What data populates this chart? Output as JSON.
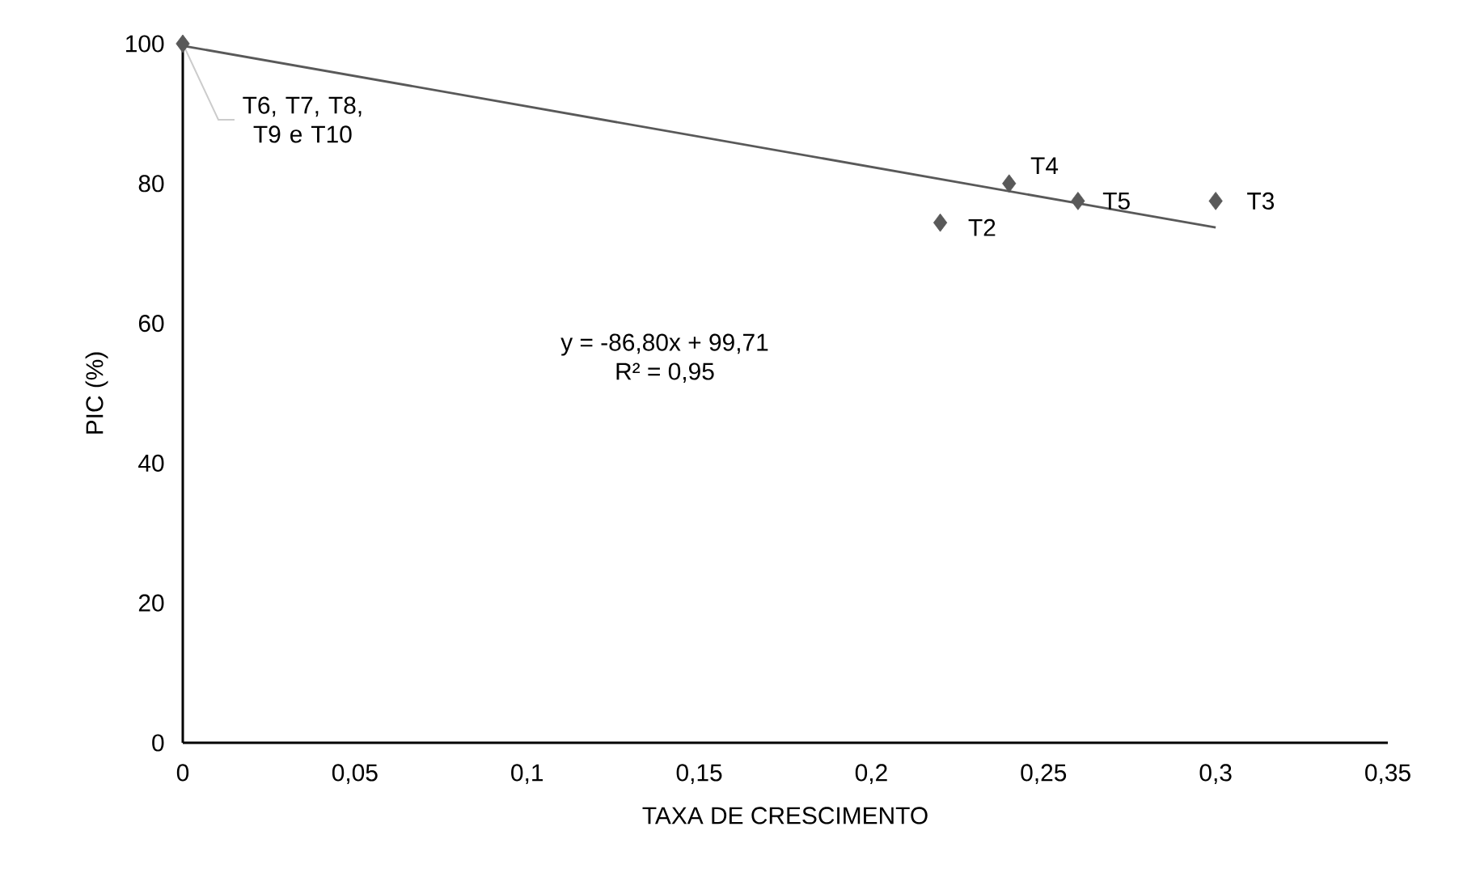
{
  "chart_data": {
    "type": "scatter",
    "xlabel": "TAXA DE CRESCIMENTO",
    "ylabel": "PIC (%)",
    "series": [
      {
        "color": "#595959",
        "marker": "diamond",
        "x": [
          0,
          0.22,
          0.24,
          0.26,
          0.3
        ],
        "values": [
          100,
          74.4,
          80,
          77.5,
          77.5
        ]
      },
      {
        "type": "line",
        "color": "#595959",
        "marker": "none",
        "line_style": "solid",
        "x": [
          0,
          0.3
        ],
        "values": [
          99.7,
          73.7
        ]
      }
    ],
    "xlim": [
      0,
      0.35
    ],
    "ylim": [
      0,
      100
    ],
    "xticks": [
      0,
      {
        "value": 0.05,
        "label": "0,05"
      },
      {
        "value": 0.1,
        "label": "0,1"
      },
      {
        "value": 0.15,
        "label": "0,15"
      },
      {
        "value": 0.2,
        "label": "0,2"
      },
      {
        "value": 0.25,
        "label": "0,25"
      },
      {
        "value": 0.3,
        "label": "0,3"
      },
      {
        "value": 0.35,
        "label": "0,35"
      }
    ],
    "yticks": [
      0,
      20,
      40,
      60,
      80,
      100
    ],
    "annotations": [
      {
        "text": "T6, T7, T8, T9 e T10",
        "x": 0,
        "y": 100
      },
      {
        "text": "T2",
        "x": 0.22,
        "y": 74.4
      },
      {
        "text": "T4",
        "x": 0.24,
        "y": 80
      },
      {
        "text": "T5",
        "x": 0.26,
        "y": 77.5
      },
      {
        "text": "T3",
        "x": 0.3,
        "y": 77.5
      },
      "y = -86,80x + 99,71",
      "R² = 0,95"
    ]
  }
}
